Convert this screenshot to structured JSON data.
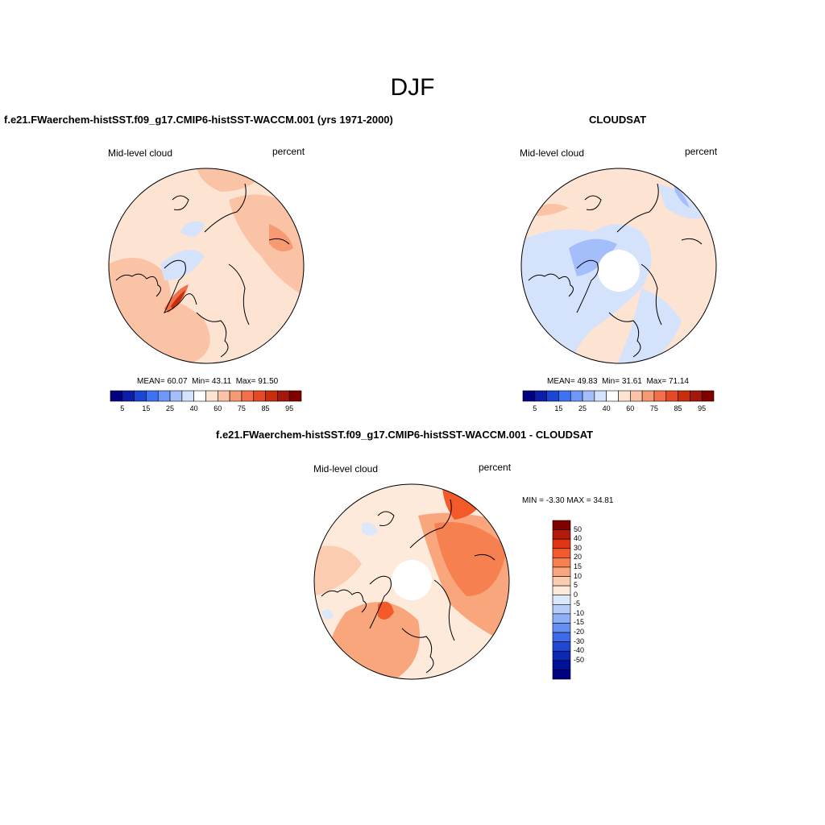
{
  "figure": {
    "title": "DJF"
  },
  "colors": {
    "abs_bar": [
      "#000080",
      "#0a1ea6",
      "#1a46d8",
      "#3d72f0",
      "#6e98f8",
      "#a3befa",
      "#d4e2fc",
      "#ffffff",
      "#fde3d2",
      "#fbc3a6",
      "#f79a72",
      "#f2714a",
      "#e54a22",
      "#c82d0c",
      "#a4170a",
      "#800000"
    ],
    "diff_bar": [
      "#800000",
      "#b41a0a",
      "#e03512",
      "#f25a2a",
      "#f6804f",
      "#f9a67d",
      "#fcccb0",
      "#fdeadb",
      "#dbe7fb",
      "#b7cdf8",
      "#8fb0f6",
      "#6690f0",
      "#3d6ae6",
      "#1f48d2",
      "#0d28b4",
      "#00109a",
      "#000080"
    ],
    "land": "#ffffff",
    "coast": "#000000"
  },
  "panels": [
    {
      "title": "f.e21.FWaerchem-histSST.f09_g17.CMIP6-histSST-WACCM.001 (yrs 1971-2000)",
      "variable": "Mid-level cloud",
      "units": "percent",
      "stats": {
        "mean_label": "MEAN=",
        "mean": "60.07",
        "min_label": "Min=",
        "min": "43.11",
        "max_label": "Max=",
        "max": "91.50"
      },
      "colorbar_ticks": [
        "5",
        "15",
        "25",
        "40",
        "60",
        "75",
        "85",
        "95"
      ]
    },
    {
      "title": "CLOUDSAT",
      "variable": "Mid-level cloud",
      "units": "percent",
      "stats": {
        "mean_label": "MEAN=",
        "mean": "49.83",
        "min_label": "Min=",
        "min": "31.61",
        "max_label": "Max=",
        "max": "71.14"
      },
      "colorbar_ticks": [
        "5",
        "15",
        "25",
        "40",
        "60",
        "75",
        "85",
        "95"
      ]
    },
    {
      "title": "f.e21.FWaerchem-histSST.f09_g17.CMIP6-histSST-WACCM.001 - CLOUDSAT",
      "variable": "Mid-level cloud",
      "units": "percent",
      "stats": {
        "min_label": "MIN =",
        "min": "-3.30",
        "max_label": "MAX =",
        "max": "34.81"
      },
      "colorbar_ticks": [
        "50",
        "40",
        "30",
        "20",
        "15",
        "10",
        "5",
        "0",
        "-5",
        "-10",
        "-15",
        "-20",
        "-30",
        "-40",
        "-50"
      ]
    }
  ]
}
